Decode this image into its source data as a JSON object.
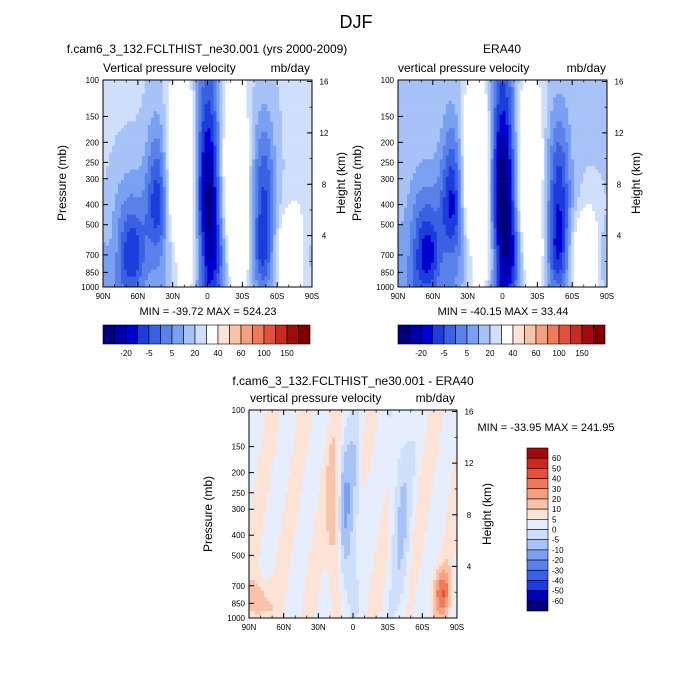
{
  "figure": {
    "title": "DJF",
    "colors": {
      "left": [
        "#00007b",
        "#0000a8",
        "#0000d0",
        "#1c3ddb",
        "#3a61e2",
        "#5a80ea",
        "#7aa0f1",
        "#a7c2f6",
        "#cfdffb",
        "#ffffff",
        "#fde2d6",
        "#f9c3aa",
        "#f5a081",
        "#ef7a5a",
        "#e4503a",
        "#c72a1f",
        "#a00c0c",
        "#800000"
      ],
      "diff": [
        "#00007b",
        "#0000c0",
        "#1c3ddb",
        "#3a61e2",
        "#5a80ea",
        "#7aa0f1",
        "#a7c2f6",
        "#cfdffb",
        "#e6eefd",
        "#fde2d6",
        "#f9c3aa",
        "#f5a081",
        "#ef7a5a",
        "#e4503a",
        "#c72a1f",
        "#a00c0c"
      ]
    }
  },
  "chart_data": [
    {
      "type": "heatmap",
      "title": "f.cam6_3_132.FCLTHIST_ne30.001 (yrs 2000-2009)",
      "left_label": "Vertical pressure velocity",
      "right_label": "mb/day",
      "ylabel": "Pressure (mb)",
      "y2label": "Height (km)",
      "x_ticks": [
        "90N",
        "60N",
        "30N",
        "0",
        "30S",
        "60S",
        "90S"
      ],
      "y_ticks": [
        "100",
        "150",
        "200",
        "250",
        "300",
        "400",
        "500",
        "700",
        "850",
        "1000"
      ],
      "y2_ticks": [
        "16",
        "12",
        "8",
        "4"
      ],
      "ylim": [
        100,
        1000
      ],
      "xlim": [
        "90N",
        "90S"
      ],
      "y_scale": "log",
      "stats": "MIN = -39.72  MAX = 524.23",
      "min": -39.72,
      "max": 524.23,
      "levels": [
        "-20",
        "-5",
        "5",
        "20",
        "40",
        "60",
        "100",
        "150"
      ]
    },
    {
      "type": "heatmap",
      "title": "ERA40",
      "left_label": "vertical pressure velocity",
      "right_label": "mb/day",
      "ylabel": "Pressure (mb)",
      "y2label": "Height (km)",
      "x_ticks": [
        "90N",
        "60N",
        "30N",
        "0",
        "30S",
        "60S",
        "90S"
      ],
      "y_ticks": [
        "100",
        "150",
        "200",
        "250",
        "300",
        "400",
        "500",
        "700",
        "850",
        "1000"
      ],
      "y2_ticks": [
        "16",
        "12",
        "8",
        "4"
      ],
      "ylim": [
        100,
        1000
      ],
      "xlim": [
        "90N",
        "90S"
      ],
      "y_scale": "log",
      "stats": "MIN = -40.15  MAX =  33.44",
      "min": -40.15,
      "max": 33.44,
      "levels": [
        "-20",
        "-5",
        "5",
        "20",
        "40",
        "60",
        "100",
        "150"
      ]
    },
    {
      "type": "heatmap",
      "title": "f.cam6_3_132.FCLTHIST_ne30.001 - ERA40",
      "left_label": "vertical pressure velocity",
      "right_label": "mb/day",
      "ylabel": "Pressure (mb)",
      "y2label": "Height (km)",
      "x_ticks": [
        "90N",
        "60N",
        "30N",
        "0",
        "30S",
        "60S",
        "90S"
      ],
      "y_ticks": [
        "100",
        "150",
        "200",
        "250",
        "300",
        "400",
        "500",
        "700",
        "850",
        "1000"
      ],
      "y2_ticks": [
        "16",
        "12",
        "8",
        "4"
      ],
      "ylim": [
        100,
        1000
      ],
      "xlim": [
        "90N",
        "90S"
      ],
      "y_scale": "log",
      "stats": "MIN = -33.95  MAX = 241.95",
      "min": -33.95,
      "max": 241.95,
      "levels": [
        "60",
        "50",
        "40",
        "30",
        "20",
        "10",
        "5",
        "0",
        "-5",
        "-10",
        "-20",
        "-30",
        "-40",
        "-50",
        "-60"
      ]
    }
  ]
}
